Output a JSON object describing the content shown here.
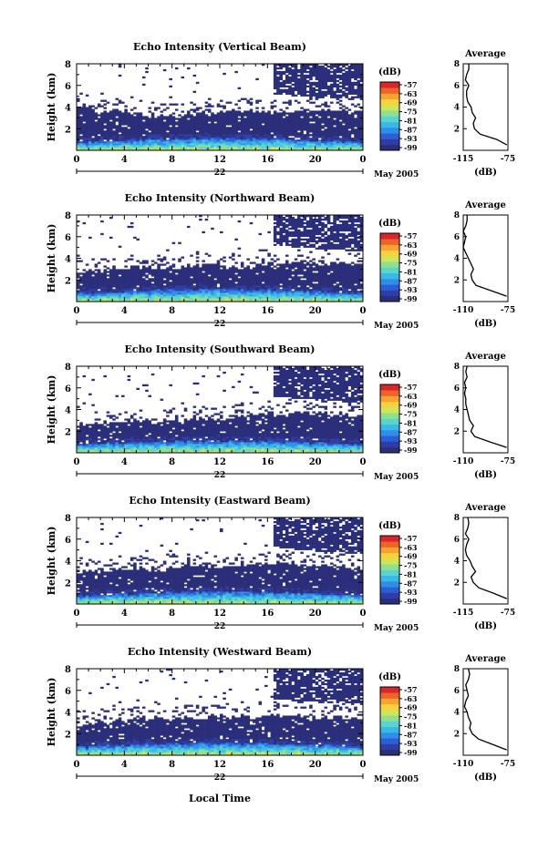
{
  "figure": {
    "date_label": "May 2005",
    "bottom_xlabel": "Local Time",
    "day_label": "22",
    "colorbar_unit": "(dB)",
    "colorbar_ticks": [
      "-57",
      "-63",
      "-69",
      "-75",
      "-81",
      "-87",
      "-93",
      "-99"
    ],
    "colorbar_colors": [
      "#2b2f7a",
      "#2f3ea6",
      "#2c5fd6",
      "#2f8fe8",
      "#38b9e6",
      "#59d4cf",
      "#8fe08e",
      "#cfe55a",
      "#f7d23c",
      "#f7a232",
      "#ee6428",
      "#d9262a"
    ],
    "avg_title": "Average",
    "avg_xunit": "(dB)"
  },
  "chart_data": [
    {
      "type": "heatmap",
      "title": "Echo Intensity (Vertical Beam)",
      "ylabel": "Height (km)",
      "xlim": [
        0,
        24
      ],
      "ylim": [
        0,
        8
      ],
      "xticks": [
        "0",
        "4",
        "8",
        "12",
        "16",
        "20",
        "0"
      ],
      "yticks": [
        "2",
        "4",
        "6",
        "8"
      ],
      "echo_top_km": [
        4.0,
        3.5,
        3.6,
        3.3,
        3.2,
        3.3,
        3.4,
        3.5,
        3.6,
        3.6,
        3.5,
        3.6,
        3.7,
        3.6,
        3.6,
        3.5
      ],
      "high_cloud": true,
      "average": {
        "xlim": [
          -115,
          -75
        ],
        "xticks": [
          "-115",
          "-75"
        ],
        "height_km": [
          0.5,
          1.0,
          1.5,
          2.0,
          2.5,
          3.0,
          3.5,
          4.0,
          4.5,
          5.0,
          5.5,
          6.0,
          6.5,
          7.0,
          7.5,
          8.0
        ],
        "db": [
          -76,
          -85,
          -100,
          -105,
          -106,
          -104,
          -107,
          -108,
          -111,
          -112,
          -112,
          -110,
          -113,
          -112,
          -110,
          -110
        ]
      }
    },
    {
      "type": "heatmap",
      "title": "Echo Intensity (Northward Beam)",
      "ylabel": "Height (km)",
      "xlim": [
        0,
        24
      ],
      "ylim": [
        0,
        8
      ],
      "xticks": [
        "0",
        "4",
        "8",
        "12",
        "16",
        "20",
        "0"
      ],
      "yticks": [
        "2",
        "4",
        "6",
        "8"
      ],
      "echo_top_km": [
        2.8,
        2.9,
        3.0,
        3.1,
        3.0,
        3.2,
        3.3,
        3.4,
        3.2,
        3.3,
        3.5,
        3.6,
        3.6,
        3.5,
        3.5,
        3.4
      ],
      "high_cloud": true,
      "average": {
        "xlim": [
          -110,
          -75
        ],
        "xticks": [
          "-110",
          "-75"
        ],
        "height_km": [
          0.5,
          1.0,
          1.5,
          2.0,
          2.5,
          3.0,
          3.5,
          4.0,
          4.5,
          5.0,
          5.5,
          6.0,
          6.5,
          7.0,
          7.5,
          8.0
        ],
        "db": [
          -76,
          -88,
          -100,
          -103,
          -104,
          -102,
          -104,
          -106,
          -108,
          -110,
          -109,
          -108,
          -110,
          -108,
          -107,
          -107
        ]
      }
    },
    {
      "type": "heatmap",
      "title": "Echo Intensity (Southward Beam)",
      "ylabel": "Height (km)",
      "xlim": [
        0,
        24
      ],
      "ylim": [
        0,
        8
      ],
      "xticks": [
        "0",
        "4",
        "8",
        "12",
        "16",
        "20",
        "0"
      ],
      "yticks": [
        "2",
        "4",
        "6",
        "8"
      ],
      "echo_top_km": [
        2.6,
        2.8,
        2.9,
        3.0,
        2.8,
        2.9,
        3.0,
        3.1,
        3.3,
        3.5,
        3.6,
        3.6,
        3.7,
        3.6,
        3.5,
        3.4
      ],
      "high_cloud": true,
      "average": {
        "xlim": [
          -110,
          -75
        ],
        "xticks": [
          "-110",
          "-75"
        ],
        "height_km": [
          0.5,
          1.0,
          1.5,
          2.0,
          2.5,
          3.0,
          3.5,
          4.0,
          4.5,
          5.0,
          5.5,
          6.0,
          6.5,
          7.0,
          7.5,
          8.0
        ],
        "db": [
          -76,
          -89,
          -101,
          -104,
          -102,
          -105,
          -106,
          -107,
          -108,
          -108,
          -109,
          -108,
          -109,
          -107,
          -108,
          -107
        ]
      }
    },
    {
      "type": "heatmap",
      "title": "Echo Intensity (Eastward Beam)",
      "ylabel": "Height (km)",
      "xlim": [
        0,
        24
      ],
      "ylim": [
        0,
        8
      ],
      "xticks": [
        "0",
        "4",
        "8",
        "12",
        "16",
        "20",
        "0"
      ],
      "yticks": [
        "2",
        "4",
        "6",
        "8"
      ],
      "echo_top_km": [
        3.0,
        3.1,
        3.2,
        3.3,
        3.2,
        3.4,
        3.5,
        3.5,
        3.4,
        3.5,
        3.6,
        3.7,
        3.6,
        3.6,
        3.5,
        3.4
      ],
      "high_cloud": true,
      "average": {
        "xlim": [
          -115,
          -75
        ],
        "xticks": [
          "-115",
          "-75"
        ],
        "height_km": [
          0.5,
          1.0,
          1.5,
          2.0,
          2.5,
          3.0,
          3.5,
          4.0,
          4.5,
          5.0,
          5.5,
          6.0,
          6.5,
          7.0,
          7.5,
          8.0
        ],
        "db": [
          -76,
          -88,
          -101,
          -106,
          -108,
          -104,
          -107,
          -109,
          -112,
          -113,
          -112,
          -110,
          -113,
          -111,
          -110,
          -111
        ]
      }
    },
    {
      "type": "heatmap",
      "title": "Echo Intensity (Westward Beam)",
      "ylabel": "Height (km)",
      "xlim": [
        0,
        24
      ],
      "ylim": [
        0,
        8
      ],
      "xticks": [
        "0",
        "4",
        "8",
        "12",
        "16",
        "20",
        "0"
      ],
      "yticks": [
        "2",
        "4",
        "6",
        "8"
      ],
      "echo_top_km": [
        2.9,
        3.0,
        3.2,
        3.3,
        3.4,
        3.3,
        3.4,
        3.5,
        3.5,
        3.6,
        3.6,
        3.7,
        3.6,
        3.5,
        3.5,
        3.4
      ],
      "high_cloud": true,
      "average": {
        "xlim": [
          -110,
          -75
        ],
        "xticks": [
          "-110",
          "-75"
        ],
        "height_km": [
          0.5,
          1.0,
          1.5,
          2.0,
          2.5,
          3.0,
          3.5,
          4.0,
          4.5,
          5.0,
          5.5,
          6.0,
          6.5,
          7.0,
          7.5,
          8.0
        ],
        "db": [
          -76,
          -87,
          -98,
          -103,
          -105,
          -104,
          -106,
          -107,
          -109,
          -108,
          -106,
          -107,
          -108,
          -106,
          -105,
          -106
        ]
      }
    }
  ]
}
